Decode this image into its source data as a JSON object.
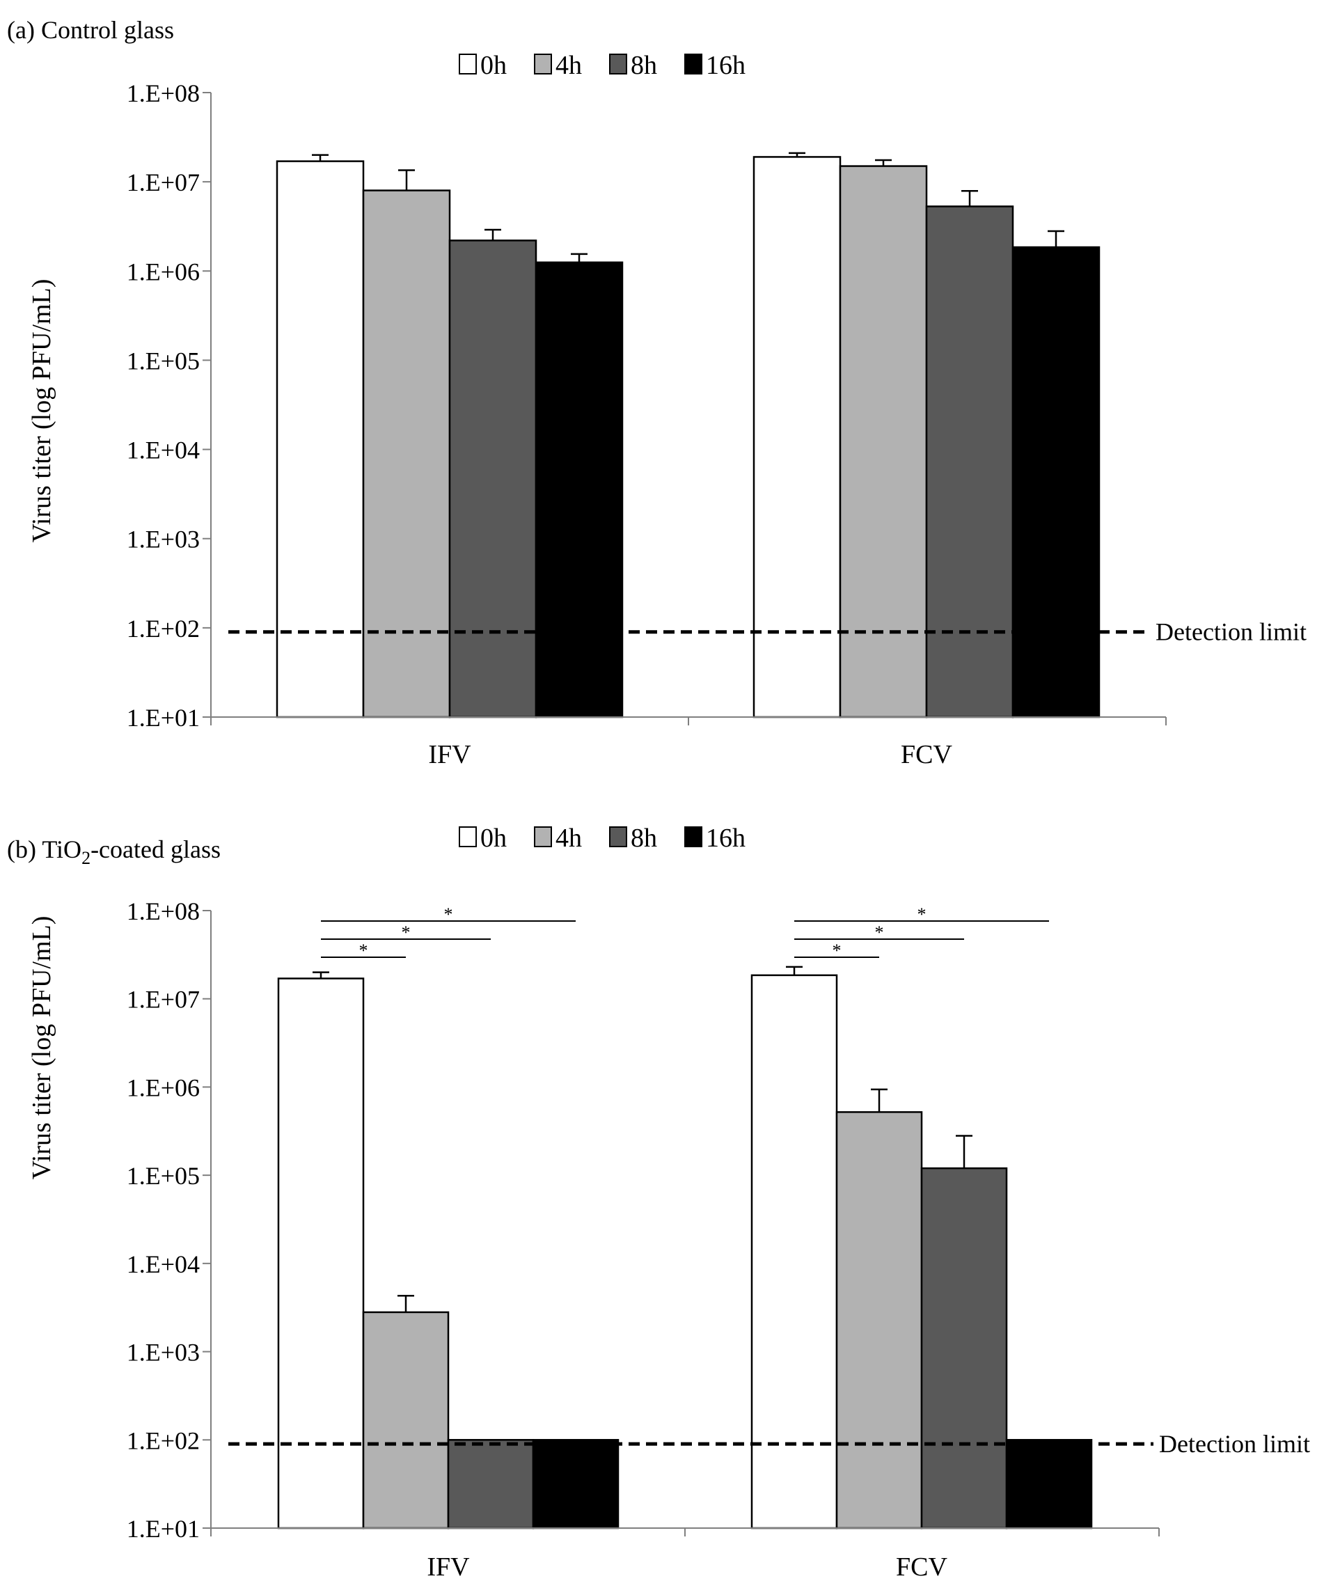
{
  "chart_data": [
    {
      "type": "bar",
      "panel_label": "(a) Control glass",
      "ylabel": "Virus titer (log PFU/mL)",
      "yscale": "log",
      "ylim": [
        10,
        100000000
      ],
      "ytick_labels": [
        "1.E+01",
        "1.E+02",
        "1.E+03",
        "1.E+04",
        "1.E+05",
        "1.E+06",
        "1.E+07",
        "1.E+08"
      ],
      "categories": [
        "IFV",
        "FCV"
      ],
      "legend": {
        "placement": "top-center",
        "entries": [
          "0h",
          "4h",
          "8h",
          "16h"
        ]
      },
      "series": [
        {
          "name": "0h",
          "color": "#ffffff",
          "values": [
            17000000,
            19000000
          ],
          "errors": [
            20000000,
            21000000
          ]
        },
        {
          "name": "4h",
          "color": "#b2b2b2",
          "values": [
            8000000,
            15000000
          ],
          "errors": [
            13500000,
            17500000
          ]
        },
        {
          "name": "8h",
          "color": "#595959",
          "values": [
            2200000,
            5300000
          ],
          "errors": [
            2900000,
            7900000
          ]
        },
        {
          "name": "16h",
          "color": "#000000",
          "values": [
            1250000,
            1850000
          ],
          "errors": [
            1550000,
            2800000
          ]
        }
      ],
      "detection_limit": {
        "value": 90,
        "label": "Detection limit"
      },
      "significance": []
    },
    {
      "type": "bar",
      "panel_label_prefix": "(b) TiO",
      "panel_label_subscript": "2",
      "panel_label_suffix": "-coated glass",
      "ylabel": "Virus titer (log PFU/mL)",
      "yscale": "log",
      "ylim": [
        10,
        100000000
      ],
      "ytick_labels": [
        "1.E+01",
        "1.E+02",
        "1.E+03",
        "1.E+04",
        "1.E+05",
        "1.E+06",
        "1.E+07",
        "1.E+08"
      ],
      "categories": [
        "IFV",
        "FCV"
      ],
      "legend": {
        "placement": "top-center",
        "entries": [
          "0h",
          "4h",
          "8h",
          "16h"
        ]
      },
      "series": [
        {
          "name": "0h",
          "color": "#ffffff",
          "values": [
            17000000,
            18500000
          ],
          "errors": [
            20000000,
            23000000
          ]
        },
        {
          "name": "4h",
          "color": "#b2b2b2",
          "values": [
            2800,
            520000
          ],
          "errors": [
            4300,
            940000
          ]
        },
        {
          "name": "8h",
          "color": "#595959",
          "values": [
            100,
            120000
          ],
          "errors": [
            null,
            280000
          ]
        },
        {
          "name": "16h",
          "color": "#000000",
          "values": [
            100,
            100
          ],
          "errors": [
            null,
            null
          ]
        }
      ],
      "detection_limit": {
        "value": 90,
        "label": "Detection limit"
      },
      "significance": [
        {
          "category": "IFV",
          "from": "0h",
          "to": "4h",
          "label": "*"
        },
        {
          "category": "IFV",
          "from": "0h",
          "to": "8h",
          "label": "*"
        },
        {
          "category": "IFV",
          "from": "0h",
          "to": "16h",
          "label": "*"
        },
        {
          "category": "FCV",
          "from": "0h",
          "to": "4h",
          "label": "*"
        },
        {
          "category": "FCV",
          "from": "0h",
          "to": "8h",
          "label": "*"
        },
        {
          "category": "FCV",
          "from": "0h",
          "to": "16h",
          "label": "*"
        }
      ]
    }
  ]
}
